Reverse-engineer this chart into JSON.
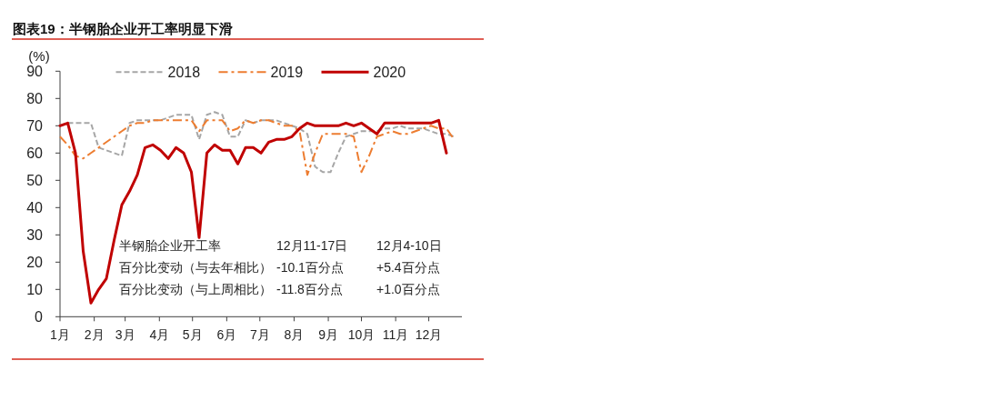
{
  "chart_data": {
    "type": "line",
    "title": "图表19：半钢胎企业开工率明显下滑",
    "ylabel": "(%)",
    "x": [
      "--01-01",
      "--01-08",
      "--01-15",
      "--01-22",
      "--01-29",
      "--02-05",
      "--02-12",
      "--02-19",
      "--02-26",
      "--03-05",
      "--03-12",
      "--03-19",
      "--03-26",
      "--04-02",
      "--04-09",
      "--04-16",
      "--04-23",
      "--04-30",
      "--05-07",
      "--05-14",
      "--05-21",
      "--05-28",
      "--06-04",
      "--06-11",
      "--06-18",
      "--06-25",
      "--07-02",
      "--07-09",
      "--07-16",
      "--07-23",
      "--07-30",
      "--08-06",
      "--08-13",
      "--08-20",
      "--08-27",
      "--09-03",
      "--09-10",
      "--09-17",
      "--09-24",
      "--10-01",
      "--10-08",
      "--10-15",
      "--10-22",
      "--10-29",
      "--11-05",
      "--11-12",
      "--11-19",
      "--11-26",
      "--12-03",
      "--12-10",
      "--12-17",
      "--12-24"
    ],
    "series": [
      {
        "name": "2018",
        "color": "#a6a6a6",
        "line_style": "dashed",
        "values": [
          70,
          71,
          71,
          71,
          71,
          62,
          61,
          60,
          59,
          71,
          72,
          72,
          72,
          72,
          73,
          74,
          74,
          74,
          65,
          74,
          75,
          74,
          66,
          66,
          72,
          71,
          72,
          72,
          72,
          71,
          70,
          69,
          67,
          55,
          53,
          53,
          60,
          66,
          67,
          68,
          68,
          68,
          69,
          69,
          70,
          69,
          69,
          69,
          68,
          67,
          67,
          66
        ]
      },
      {
        "name": "2019",
        "color": "#ed7d31",
        "line_style": "dashdot",
        "values": [
          66,
          63,
          59,
          58,
          60,
          62,
          64,
          66,
          68,
          70,
          71,
          71,
          72,
          72,
          72,
          72,
          72,
          72,
          68,
          72,
          72,
          72,
          68,
          69,
          72,
          71,
          72,
          72,
          71,
          70,
          70,
          68,
          52,
          60,
          67,
          67,
          67,
          67,
          66,
          53,
          59,
          66,
          67,
          68,
          67,
          67,
          68,
          69,
          70,
          69,
          69,
          65
        ]
      },
      {
        "name": "2020",
        "color": "#c00000",
        "line_style": "solid",
        "values": [
          70,
          71,
          60,
          24,
          5,
          10,
          14,
          28,
          41,
          46,
          52,
          62,
          63,
          61,
          58,
          62,
          60,
          53,
          29,
          60,
          63,
          61,
          61,
          56,
          62,
          62,
          60,
          64,
          65,
          65,
          66,
          69,
          71,
          70,
          70,
          70,
          70,
          71,
          70,
          71,
          69,
          67,
          71,
          71,
          71,
          71,
          71,
          71,
          71,
          72,
          60,
          null
        ]
      }
    ],
    "xlim": [
      "--01-01",
      "--12-31"
    ],
    "xticks": [
      {
        "value": "--01-01",
        "label": "1月"
      },
      {
        "value": "--02-01",
        "label": "2月"
      },
      {
        "value": "--03-01",
        "label": "3月"
      },
      {
        "value": "--04-01",
        "label": "4月"
      },
      {
        "value": "--05-01",
        "label": "5月"
      },
      {
        "value": "--06-01",
        "label": "6月"
      },
      {
        "value": "--07-01",
        "label": "7月"
      },
      {
        "value": "--08-01",
        "label": "8月"
      },
      {
        "value": "--09-01",
        "label": "9月"
      },
      {
        "value": "--10-01",
        "label": "10月"
      },
      {
        "value": "--11-01",
        "label": "11月"
      },
      {
        "value": "--12-01",
        "label": "12月"
      }
    ],
    "ylim": [
      0,
      90
    ],
    "yticks": [
      0,
      10,
      20,
      30,
      40,
      50,
      60,
      70,
      80,
      90
    ],
    "legend": "top",
    "annotations": [
      "半钢胎企业开工率",
      "12月11-17日",
      "12月4-10日",
      "百分比变动（与去年相比）",
      "-10.1百分点",
      "+5.4百分点",
      "百分比变动（与上周相比）",
      "-11.8百分点",
      "+1.0百分点"
    ]
  }
}
